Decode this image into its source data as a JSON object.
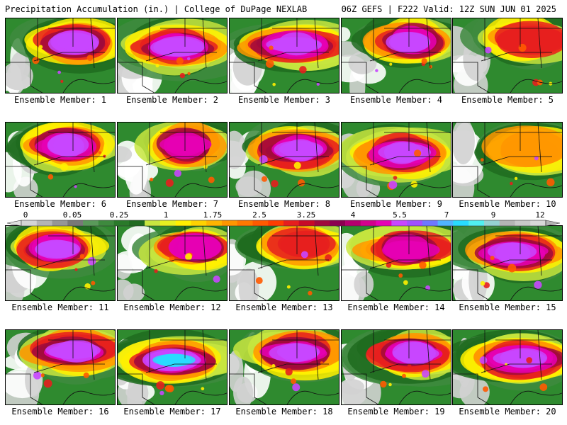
{
  "header": {
    "title": "Precipitation Accumulation (in.) | College of DuPage NEXLAB",
    "run_info": "06Z GEFS | F222 Valid: 12Z SUN JUN 01 2025"
  },
  "caption_prefix": "Ensemble Member: ",
  "members": [
    {
      "number": 1,
      "label": "Ensemble Member: 1",
      "core_x": 0.62,
      "core_y": 0.32,
      "intensity": 0.9,
      "spread": 1.0
    },
    {
      "number": 2,
      "label": "Ensemble Member: 2",
      "core_x": 0.55,
      "core_y": 0.38,
      "intensity": 0.9,
      "spread": 1.1
    },
    {
      "number": 3,
      "label": "Ensemble Member: 3",
      "core_x": 0.6,
      "core_y": 0.35,
      "intensity": 0.85,
      "spread": 1.2
    },
    {
      "number": 4,
      "label": "Ensemble Member: 4",
      "core_x": 0.62,
      "core_y": 0.3,
      "intensity": 0.9,
      "spread": 1.0
    },
    {
      "number": 5,
      "label": "Ensemble Member: 5",
      "core_x": 0.68,
      "core_y": 0.28,
      "intensity": 0.6,
      "spread": 0.9
    },
    {
      "number": 6,
      "label": "Ensemble Member: 6",
      "core_x": 0.55,
      "core_y": 0.3,
      "intensity": 0.85,
      "spread": 1.0
    },
    {
      "number": 7,
      "label": "Ensemble Member: 7",
      "core_x": 0.62,
      "core_y": 0.3,
      "intensity": 0.8,
      "spread": 0.9
    },
    {
      "number": 8,
      "label": "Ensemble Member: 8",
      "core_x": 0.62,
      "core_y": 0.35,
      "intensity": 0.9,
      "spread": 1.1
    },
    {
      "number": 9,
      "label": "Ensemble Member: 9",
      "core_x": 0.55,
      "core_y": 0.4,
      "intensity": 0.85,
      "spread": 1.1
    },
    {
      "number": 10,
      "label": "Ensemble Member: 10",
      "core_x": 0.7,
      "core_y": 0.35,
      "intensity": 0.55,
      "spread": 1.0
    },
    {
      "number": 11,
      "label": "Ensemble Member: 11",
      "core_x": 0.45,
      "core_y": 0.3,
      "intensity": 0.9,
      "spread": 1.0
    },
    {
      "number": 12,
      "label": "Ensemble Member: 12",
      "core_x": 0.7,
      "core_y": 0.3,
      "intensity": 0.8,
      "spread": 0.9
    },
    {
      "number": 13,
      "label": "Ensemble Member: 13",
      "core_x": 0.65,
      "core_y": 0.25,
      "intensity": 0.6,
      "spread": 1.0
    },
    {
      "number": 14,
      "label": "Ensemble Member: 14",
      "core_x": 0.6,
      "core_y": 0.3,
      "intensity": 0.8,
      "spread": 1.1
    },
    {
      "number": 15,
      "label": "Ensemble Member: 15",
      "core_x": 0.55,
      "core_y": 0.35,
      "intensity": 0.85,
      "spread": 1.1
    },
    {
      "number": 16,
      "label": "Ensemble Member: 16",
      "core_x": 0.62,
      "core_y": 0.28,
      "intensity": 0.85,
      "spread": 1.1
    },
    {
      "number": 17,
      "label": "Ensemble Member: 17",
      "core_x": 0.5,
      "core_y": 0.4,
      "intensity": 0.95,
      "spread": 1.2
    },
    {
      "number": 18,
      "label": "Ensemble Member: 18",
      "core_x": 0.6,
      "core_y": 0.3,
      "intensity": 0.85,
      "spread": 1.1
    },
    {
      "number": 19,
      "label": "Ensemble Member: 19",
      "core_x": 0.65,
      "core_y": 0.3,
      "intensity": 0.85,
      "spread": 1.1
    },
    {
      "number": 20,
      "label": "Ensemble Member: 20",
      "core_x": 0.62,
      "core_y": 0.38,
      "intensity": 0.9,
      "spread": 1.2
    }
  ],
  "colorbar": {
    "labels": [
      "0",
      "0.05",
      "0.25",
      "1",
      "1.75",
      "2.5",
      "3.25",
      "4",
      "5.5",
      "7",
      "9",
      "12"
    ],
    "colors": [
      "#d4d4d4",
      "#b4b4b4",
      "#969696",
      "#787878",
      "#5a9a5a",
      "#3e8a3e",
      "#2a7a2a",
      "#1f6b1f",
      "#c8e640",
      "#e6f020",
      "#fff000",
      "#ffd200",
      "#ffb400",
      "#ff9600",
      "#ff7800",
      "#ff5a00",
      "#ff3c00",
      "#e61e1e",
      "#c80a28",
      "#a00a3c",
      "#8c0050",
      "#b4006e",
      "#d2008c",
      "#e600b4",
      "#c846ff",
      "#a050ff",
      "#6e78ff",
      "#50b4ff",
      "#28dcff",
      "#50f0f0",
      "#96d2d2",
      "#b4b4b4",
      "#c8c8c8",
      "#d8d8d8"
    ]
  }
}
